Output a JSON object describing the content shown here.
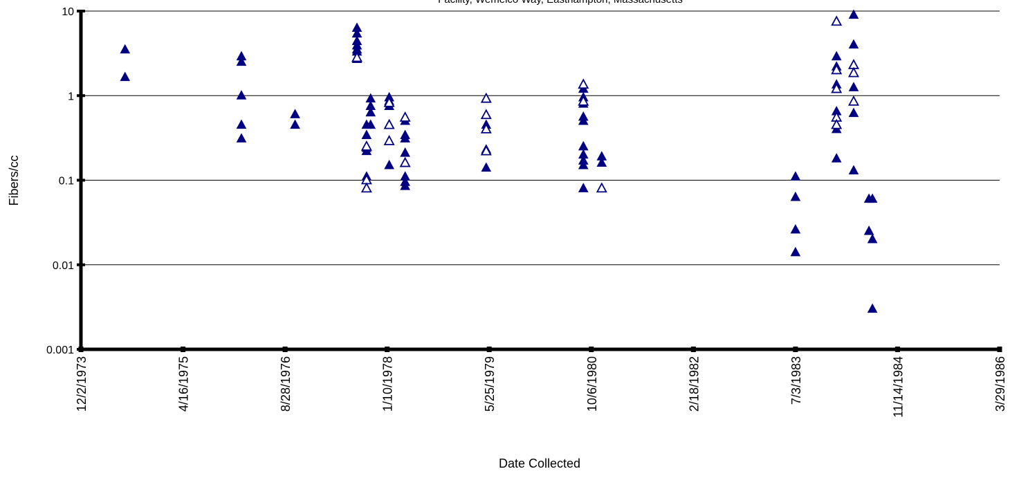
{
  "chart_data": {
    "type": "scatter",
    "title": "Facility, Wemelco Way, Easthampton, Massachusetts",
    "xlabel": "Date Collected",
    "ylabel": "Fibers/cc",
    "y_scale": "log",
    "ylim": [
      0.001,
      10
    ],
    "y_ticks": [
      "10",
      "1",
      "0.1",
      "0.01",
      "0.001"
    ],
    "xlim": [
      "1973-12-02",
      "1986-03-29"
    ],
    "x_ticks": [
      "12/2/1973",
      "4/16/1975",
      "8/28/1976",
      "1/10/1978",
      "5/25/1979",
      "10/6/1980",
      "2/18/1982",
      "7/3/1983",
      "11/14/1984",
      "3/29/1986"
    ],
    "grid": "horizontal",
    "legend": "none",
    "colors": {
      "marker": "#000080",
      "axis": "#000000",
      "grid": "#000000"
    },
    "series": [
      {
        "marker": "filled-triangle",
        "points": [
          [
            "1974-07-06",
            3.5
          ],
          [
            "1974-07-06",
            1.65
          ],
          [
            "1976-01-27",
            2.9
          ],
          [
            "1976-01-27",
            2.5
          ],
          [
            "1976-01-27",
            1.0
          ],
          [
            "1976-01-27",
            0.45
          ],
          [
            "1976-01-27",
            0.31
          ],
          [
            "1976-10-16",
            0.6
          ],
          [
            "1976-10-16",
            0.45
          ],
          [
            "1977-08-15",
            6.3
          ],
          [
            "1977-08-15",
            5.4
          ],
          [
            "1977-08-15",
            4.4
          ],
          [
            "1977-08-15",
            3.9
          ],
          [
            "1977-08-15",
            3.5
          ],
          [
            "1977-08-15",
            3.3
          ],
          [
            "1977-08-15",
            2.7
          ],
          [
            "1977-10-01",
            0.45
          ],
          [
            "1977-10-01",
            0.34
          ],
          [
            "1977-10-01",
            0.24
          ],
          [
            "1977-10-01",
            0.22
          ],
          [
            "1977-10-01",
            0.11
          ],
          [
            "1977-10-21",
            0.92
          ],
          [
            "1977-10-21",
            0.75
          ],
          [
            "1977-10-21",
            0.63
          ],
          [
            "1977-10-21",
            0.45
          ],
          [
            "1978-01-20",
            0.95
          ],
          [
            "1978-01-20",
            0.86
          ],
          [
            "1978-01-20",
            0.75
          ],
          [
            "1978-01-20",
            0.15
          ],
          [
            "1978-04-08",
            0.55
          ],
          [
            "1978-04-08",
            0.5
          ],
          [
            "1978-04-08",
            0.34
          ],
          [
            "1978-04-08",
            0.31
          ],
          [
            "1978-04-08",
            0.21
          ],
          [
            "1978-04-08",
            0.16
          ],
          [
            "1978-04-08",
            0.11
          ],
          [
            "1978-04-08",
            0.095
          ],
          [
            "1978-04-08",
            0.085
          ],
          [
            "1979-05-10",
            0.45
          ],
          [
            "1979-05-10",
            0.23
          ],
          [
            "1979-05-10",
            0.14
          ],
          [
            "1980-08-28",
            1.2
          ],
          [
            "1980-08-28",
            0.95
          ],
          [
            "1980-08-28",
            0.8
          ],
          [
            "1980-08-28",
            0.56
          ],
          [
            "1980-08-28",
            0.5
          ],
          [
            "1980-08-28",
            0.25
          ],
          [
            "1980-08-28",
            0.2
          ],
          [
            "1980-08-28",
            0.17
          ],
          [
            "1980-08-28",
            0.15
          ],
          [
            "1980-08-28",
            0.08
          ],
          [
            "1980-11-26",
            0.19
          ],
          [
            "1980-11-26",
            0.16
          ],
          [
            "1983-07-03",
            0.11
          ],
          [
            "1983-07-03",
            0.063
          ],
          [
            "1983-07-03",
            0.026
          ],
          [
            "1983-07-03",
            0.014
          ],
          [
            "1984-01-20",
            2.9
          ],
          [
            "1984-01-20",
            2.2
          ],
          [
            "1984-01-20",
            1.35
          ],
          [
            "1984-01-20",
            0.65
          ],
          [
            "1984-01-20",
            0.4
          ],
          [
            "1984-01-20",
            0.18
          ],
          [
            "1984-04-13",
            9.0
          ],
          [
            "1984-04-13",
            4.0
          ],
          [
            "1984-04-13",
            1.25
          ],
          [
            "1984-04-13",
            0.62
          ],
          [
            "1984-04-13",
            0.13
          ],
          [
            "1984-06-27",
            0.06
          ],
          [
            "1984-06-27",
            0.025
          ],
          [
            "1984-07-14",
            0.06
          ],
          [
            "1984-07-14",
            0.02
          ],
          [
            "1984-07-14",
            0.003
          ]
        ]
      },
      {
        "marker": "open-triangle",
        "points": [
          [
            "1977-08-15",
            2.8
          ],
          [
            "1977-10-01",
            0.25
          ],
          [
            "1977-10-01",
            0.1
          ],
          [
            "1977-10-01",
            0.08
          ],
          [
            "1978-01-20",
            0.45
          ],
          [
            "1978-01-20",
            0.29
          ],
          [
            "1978-01-20",
            0.82
          ],
          [
            "1978-04-08",
            0.55
          ],
          [
            "1978-04-08",
            0.16
          ],
          [
            "1979-05-10",
            0.92
          ],
          [
            "1979-05-10",
            0.59
          ],
          [
            "1979-05-10",
            0.4
          ],
          [
            "1979-05-10",
            0.22
          ],
          [
            "1980-08-28",
            1.35
          ],
          [
            "1980-08-28",
            0.85
          ],
          [
            "1980-11-26",
            0.08
          ],
          [
            "1984-01-20",
            7.5
          ],
          [
            "1984-01-20",
            2.0
          ],
          [
            "1984-01-20",
            1.2
          ],
          [
            "1984-01-20",
            0.55
          ],
          [
            "1984-01-20",
            0.45
          ],
          [
            "1984-04-13",
            2.3
          ],
          [
            "1984-04-13",
            1.85
          ],
          [
            "1984-04-13",
            0.85
          ]
        ]
      }
    ]
  }
}
